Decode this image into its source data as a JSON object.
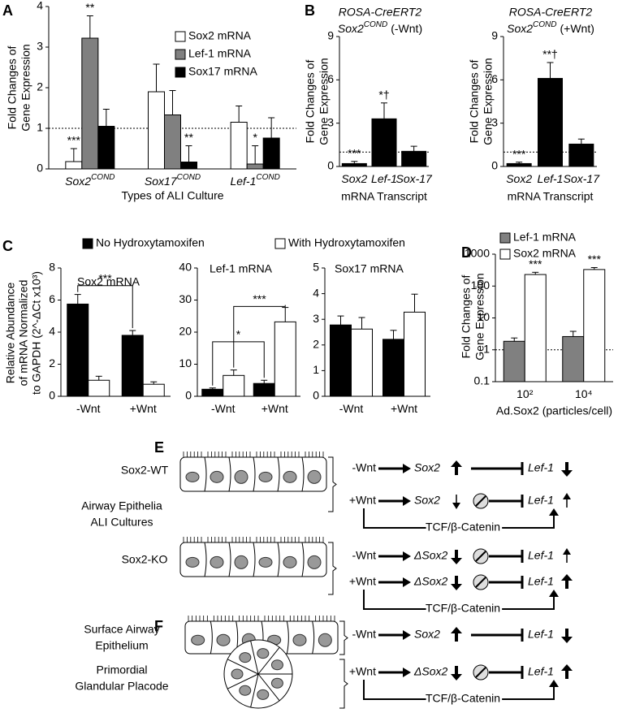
{
  "chart_data": [
    {
      "panel": "A",
      "type": "bar",
      "ylabel": [
        "Fold Changes of",
        "Gene Expression"
      ],
      "xlabel": "Types of ALI Culture",
      "categories": [
        "Sox2",
        "Sox17",
        "Lef-1"
      ],
      "category_superscripts": [
        "COND",
        "COND",
        "COND"
      ],
      "ylim": [
        0,
        4
      ],
      "yticks": [
        0,
        1,
        2,
        3,
        4
      ],
      "reference_line": 1,
      "legend": "upper right",
      "series": [
        {
          "name": "Sox2 mRNA",
          "color": "#ffffff",
          "values": [
            0.18,
            1.9,
            1.15
          ],
          "errors": [
            0.32,
            0.68,
            0.4
          ],
          "value_annotations": [
            "***",
            null,
            null
          ]
        },
        {
          "name": "Lef-1 mRNA",
          "color": "#808080",
          "values": [
            3.22,
            1.33,
            0.12
          ],
          "errors": [
            0.55,
            0.6,
            0.45
          ],
          "value_annotations": [
            "**",
            null,
            "*"
          ]
        },
        {
          "name": "Sox17 mRNA",
          "color": "#000000",
          "values": [
            1.05,
            0.17,
            0.76
          ],
          "errors": [
            0.42,
            0.4,
            0.5
          ],
          "value_annotations": [
            null,
            "**",
            null
          ]
        }
      ]
    },
    {
      "panel": "B",
      "type": "bar",
      "title": "ROSA-CreERT2",
      "subtitle_parts": [
        "Sox2",
        "COND",
        "(-Wnt)"
      ],
      "ylabel": [
        "Fold Changes of",
        "Gene Expression"
      ],
      "xlabel": "mRNA Transcript",
      "categories": [
        "Sox2",
        "Lef-1",
        "Sox-17"
      ],
      "ylim": [
        0,
        9
      ],
      "yticks": [
        0,
        3,
        6,
        9
      ],
      "reference_line": 1,
      "series": [
        {
          "color": "#000000",
          "values": [
            0.2,
            3.3,
            1.05
          ],
          "errors": [
            0.15,
            1.1,
            0.35
          ],
          "value_annotations": [
            "***",
            "*†",
            null
          ]
        }
      ]
    },
    {
      "type": "bar",
      "title": "ROSA-CreERT2",
      "subtitle_parts": [
        "Sox2",
        "COND",
        "(+Wnt)"
      ],
      "ylabel": [
        "Fold Changes of",
        "Gene Expression"
      ],
      "xlabel": "mRNA Transcript",
      "categories": [
        "Sox2",
        "Lef-1",
        "Sox-17"
      ],
      "ylim": [
        0,
        9
      ],
      "yticks": [
        0,
        3,
        6,
        9
      ],
      "reference_line": 1,
      "series": [
        {
          "color": "#000000",
          "values": [
            0.2,
            6.1,
            1.55
          ],
          "errors": [
            0.1,
            1.1,
            0.35
          ],
          "value_annotations": [
            "***",
            "**†",
            null
          ]
        }
      ]
    },
    {
      "panel": "C",
      "type": "bar",
      "title": "Sox2 mRNA",
      "ylabel": [
        "Relative Abundance",
        "of mRNA Normalized",
        "to GAPDH (2^-ΔCt x10³)"
      ],
      "categories": [
        "-Wnt",
        "+Wnt"
      ],
      "ylim": [
        0,
        8
      ],
      "yticks": [
        0,
        2,
        4,
        6,
        8
      ],
      "legend": "top",
      "series": [
        {
          "name": "No Hydroxytamoxifen",
          "color": "#000000",
          "values": [
            5.75,
            3.8
          ],
          "errors": [
            0.6,
            0.3
          ]
        },
        {
          "name": "With Hydroxytamoxifen",
          "color": "#ffffff",
          "values": [
            1.0,
            0.75
          ],
          "errors": [
            0.25,
            0.15
          ]
        }
      ],
      "brackets": [
        {
          "label": "***",
          "series": 0,
          "categories": [
            0,
            1
          ],
          "y": 6.9
        }
      ]
    },
    {
      "type": "bar",
      "title": "Lef-1 mRNA",
      "categories": [
        "-Wnt",
        "+Wnt"
      ],
      "ylim": [
        0,
        40
      ],
      "yticks": [
        0,
        10,
        20,
        30,
        40
      ],
      "series": [
        {
          "color": "#000000",
          "values": [
            2.2,
            4.0
          ],
          "errors": [
            0.4,
            1.0
          ]
        },
        {
          "color": "#ffffff",
          "values": [
            6.5,
            23.2
          ],
          "errors": [
            1.7,
            4.5
          ]
        }
      ],
      "brackets": [
        {
          "label": "*",
          "series": 0,
          "categories": [
            0,
            1
          ],
          "y": 17
        },
        {
          "label": "***",
          "series": 1,
          "categories": [
            0,
            1
          ],
          "y": 28
        }
      ]
    },
    {
      "type": "bar",
      "title": "Sox17 mRNA",
      "categories": [
        "-Wnt",
        "+Wnt"
      ],
      "ylim": [
        0,
        5
      ],
      "yticks": [
        0,
        1,
        2,
        3,
        4,
        5
      ],
      "series": [
        {
          "color": "#000000",
          "values": [
            2.78,
            2.22
          ],
          "errors": [
            0.35,
            0.35
          ]
        },
        {
          "color": "#ffffff",
          "values": [
            2.62,
            3.28
          ],
          "errors": [
            0.45,
            0.7
          ]
        }
      ]
    },
    {
      "panel": "D",
      "type": "bar",
      "log_scale": true,
      "ylabel": [
        "Fold Changes of",
        "Gene Expression"
      ],
      "xlabel": "Ad.Sox2 (particles/cell)",
      "categories": [
        "10²",
        "10⁴"
      ],
      "ylim": [
        0.1,
        1000
      ],
      "yticks": [
        0.1,
        1,
        10,
        100,
        1000
      ],
      "reference_line": 1,
      "legend": "upper left",
      "series": [
        {
          "name": "Lef-1 mRNA",
          "color": "#808080",
          "values": [
            1.85,
            2.6
          ],
          "errors": [
            0.5,
            1.2
          ],
          "value_annotations": [
            null,
            null
          ]
        },
        {
          "name": "Sox2 mRNA",
          "color": "#ffffff",
          "values": [
            230,
            330
          ],
          "errors": [
            40,
            50
          ],
          "value_annotations": [
            "***",
            "***"
          ]
        }
      ]
    }
  ],
  "panel_E": {
    "label": "E",
    "cell_labels": [
      "Sox2-WT",
      "Airway Epithelia",
      "ALI Cultures",
      "Sox2-KO"
    ],
    "rows": [
      {
        "signal": "-Wnt",
        "gene": "Sox2",
        "target": "Lef-1"
      },
      {
        "signal": "+Wnt",
        "gene": "Sox2",
        "target": "Lef-1",
        "pathway": "TCF/β-Catenin"
      },
      {
        "signal": "-Wnt",
        "gene": "ΔSox2",
        "target": "Lef-1"
      },
      {
        "signal": "+Wnt",
        "gene": "ΔSox2",
        "target": "Lef-1",
        "pathway": "TCF/β-Catenin"
      }
    ]
  },
  "panel_F": {
    "label": "F",
    "cell_labels": [
      "Surface Airway",
      "Epithelium",
      "Primordial",
      "Glandular Placode"
    ],
    "rows": [
      {
        "signal": "-Wnt",
        "gene": "Sox2",
        "target": "Lef-1"
      },
      {
        "signal": "+Wnt",
        "gene": "ΔSox2",
        "target": "Lef-1",
        "pathway": "TCF/β-Catenin"
      }
    ]
  }
}
